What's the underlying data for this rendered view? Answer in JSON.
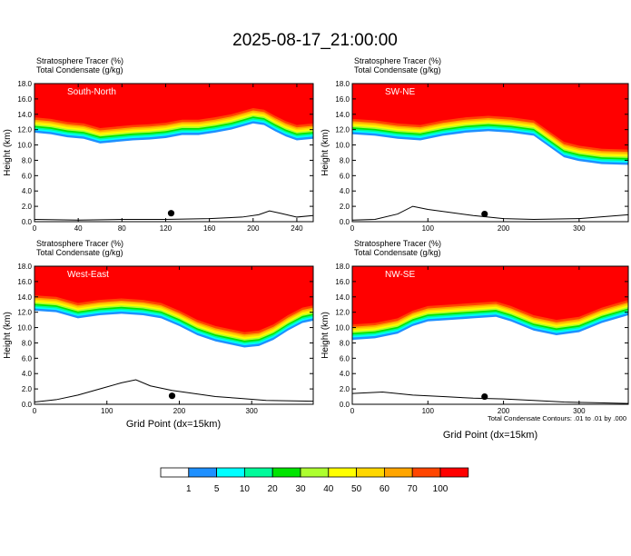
{
  "title": "2025-08-17_21:00:00",
  "chart_data": [
    {
      "type": "heatmap",
      "panel": "South-North",
      "header_lines": [
        "Stratosphere Tracer   (%)",
        "Total Condensate   (g/kg)"
      ],
      "ylabel": "Height (km)",
      "xlabel": "",
      "xlim": [
        0,
        255
      ],
      "ylim": [
        0,
        18
      ],
      "xticks": [
        0,
        40,
        80,
        120,
        160,
        200,
        240
      ],
      "yticks": [
        "0.0",
        "2.0",
        "4.0",
        "6.0",
        "8.0",
        "10.0",
        "12.0",
        "14.0",
        "16.0",
        "18.0"
      ],
      "tracer_base_km": [
        [
          0,
          13.6
        ],
        [
          15,
          13.4
        ],
        [
          30,
          13.0
        ],
        [
          45,
          12.8
        ],
        [
          60,
          12.2
        ],
        [
          75,
          12.4
        ],
        [
          90,
          12.6
        ],
        [
          105,
          12.7
        ],
        [
          120,
          12.9
        ],
        [
          135,
          13.3
        ],
        [
          150,
          13.3
        ],
        [
          165,
          13.6
        ],
        [
          180,
          14.0
        ],
        [
          190,
          14.4
        ],
        [
          200,
          14.8
        ],
        [
          210,
          14.6
        ],
        [
          220,
          13.8
        ],
        [
          230,
          13.1
        ],
        [
          240,
          12.6
        ],
        [
          255,
          12.8
        ]
      ],
      "terrain_km": [
        [
          0,
          0.3
        ],
        [
          40,
          0.2
        ],
        [
          80,
          0.3
        ],
        [
          120,
          0.3
        ],
        [
          160,
          0.4
        ],
        [
          190,
          0.6
        ],
        [
          205,
          0.9
        ],
        [
          215,
          1.4
        ],
        [
          225,
          1.1
        ],
        [
          240,
          0.6
        ],
        [
          255,
          0.8
        ]
      ],
      "marker": [
        125,
        1.1
      ]
    },
    {
      "type": "heatmap",
      "panel": "SW-NE",
      "header_lines": [
        "Stratosphere Tracer   (%)",
        "Total Condensate   (g/kg)"
      ],
      "ylabel": "Height (km)",
      "xlabel": "",
      "xlim": [
        0,
        365
      ],
      "ylim": [
        0,
        18
      ],
      "xticks": [
        0,
        100,
        200,
        300
      ],
      "yticks": [
        "0.0",
        "2.0",
        "4.0",
        "6.0",
        "8.0",
        "10.0",
        "12.0",
        "14.0",
        "16.0",
        "18.0"
      ],
      "tracer_base_km": [
        [
          0,
          13.4
        ],
        [
          30,
          13.2
        ],
        [
          60,
          12.8
        ],
        [
          90,
          12.6
        ],
        [
          120,
          13.2
        ],
        [
          150,
          13.6
        ],
        [
          180,
          13.8
        ],
        [
          210,
          13.6
        ],
        [
          240,
          13.2
        ],
        [
          260,
          11.8
        ],
        [
          280,
          10.4
        ],
        [
          300,
          9.9
        ],
        [
          330,
          9.5
        ],
        [
          365,
          9.4
        ]
      ],
      "terrain_km": [
        [
          0,
          0.2
        ],
        [
          30,
          0.3
        ],
        [
          60,
          1.0
        ],
        [
          80,
          2.0
        ],
        [
          100,
          1.6
        ],
        [
          130,
          1.2
        ],
        [
          160,
          0.8
        ],
        [
          200,
          0.4
        ],
        [
          240,
          0.3
        ],
        [
          300,
          0.4
        ],
        [
          365,
          0.9
        ]
      ],
      "marker": [
        175,
        1.0
      ]
    },
    {
      "type": "heatmap",
      "panel": "West-East",
      "header_lines": [
        "Stratosphere Tracer   (%)",
        "Total Condensate   (g/kg)"
      ],
      "ylabel": "Height (km)",
      "xlabel": "",
      "xlim": [
        0,
        385
      ],
      "ylim": [
        0,
        18
      ],
      "xticks": [
        0,
        100,
        200,
        300
      ],
      "yticks": [
        "0.0",
        "2.0",
        "4.0",
        "6.0",
        "8.0",
        "10.0",
        "12.0",
        "14.0",
        "16.0",
        "18.0"
      ],
      "tracer_base_km": [
        [
          0,
          14.2
        ],
        [
          30,
          14.0
        ],
        [
          60,
          13.2
        ],
        [
          90,
          13.6
        ],
        [
          120,
          13.8
        ],
        [
          150,
          13.6
        ],
        [
          175,
          13.2
        ],
        [
          200,
          12.2
        ],
        [
          225,
          11.0
        ],
        [
          250,
          10.2
        ],
        [
          270,
          9.8
        ],
        [
          290,
          9.4
        ],
        [
          310,
          9.6
        ],
        [
          330,
          10.4
        ],
        [
          350,
          11.6
        ],
        [
          370,
          12.6
        ],
        [
          385,
          12.9
        ]
      ],
      "terrain_km": [
        [
          0,
          0.3
        ],
        [
          30,
          0.6
        ],
        [
          60,
          1.2
        ],
        [
          90,
          2.0
        ],
        [
          120,
          2.8
        ],
        [
          140,
          3.2
        ],
        [
          160,
          2.4
        ],
        [
          190,
          1.8
        ],
        [
          220,
          1.4
        ],
        [
          250,
          1.0
        ],
        [
          280,
          0.8
        ],
        [
          320,
          0.5
        ],
        [
          385,
          0.4
        ]
      ],
      "marker": [
        190,
        1.1
      ]
    },
    {
      "type": "heatmap",
      "panel": "NW-SE",
      "header_lines": [
        "Stratosphere Tracer   (%)",
        "Total Condensate   (g/kg)"
      ],
      "ylabel": "Height (km)",
      "xlabel": "Grid Point (dx=15km)",
      "xlim": [
        0,
        365
      ],
      "ylim": [
        0,
        18
      ],
      "xticks": [
        0,
        100,
        200,
        300
      ],
      "yticks": [
        "0.0",
        "2.0",
        "4.0",
        "6.0",
        "8.0",
        "10.0",
        "12.0",
        "14.0",
        "16.0",
        "18.0"
      ],
      "tracer_base_km": [
        [
          0,
          10.4
        ],
        [
          30,
          10.6
        ],
        [
          60,
          11.2
        ],
        [
          80,
          12.2
        ],
        [
          100,
          12.8
        ],
        [
          130,
          13.0
        ],
        [
          160,
          13.2
        ],
        [
          190,
          13.4
        ],
        [
          210,
          12.8
        ],
        [
          240,
          11.6
        ],
        [
          270,
          11.0
        ],
        [
          300,
          11.4
        ],
        [
          330,
          12.6
        ],
        [
          365,
          13.6
        ]
      ],
      "terrain_km": [
        [
          0,
          1.4
        ],
        [
          40,
          1.6
        ],
        [
          80,
          1.2
        ],
        [
          120,
          1.0
        ],
        [
          160,
          0.8
        ],
        [
          200,
          0.7
        ],
        [
          240,
          0.5
        ],
        [
          280,
          0.3
        ],
        [
          320,
          0.2
        ],
        [
          365,
          0.1
        ]
      ],
      "marker": [
        175,
        1.0
      ]
    }
  ],
  "footer": {
    "xlabel_left": "Grid Point (dx=15km)",
    "contour_note": "Total Condensate Contours: .01 to .01 by .000"
  },
  "colorbar": {
    "labels": [
      "1",
      "5",
      "10",
      "20",
      "30",
      "40",
      "50",
      "60",
      "70",
      "100"
    ],
    "colors": [
      "#ffffff",
      "#1e90ff",
      "#00ffff",
      "#00fa9a",
      "#00e400",
      "#adff2f",
      "#ffff00",
      "#ffd700",
      "#ffa500",
      "#ff4500",
      "#ff0000"
    ]
  }
}
